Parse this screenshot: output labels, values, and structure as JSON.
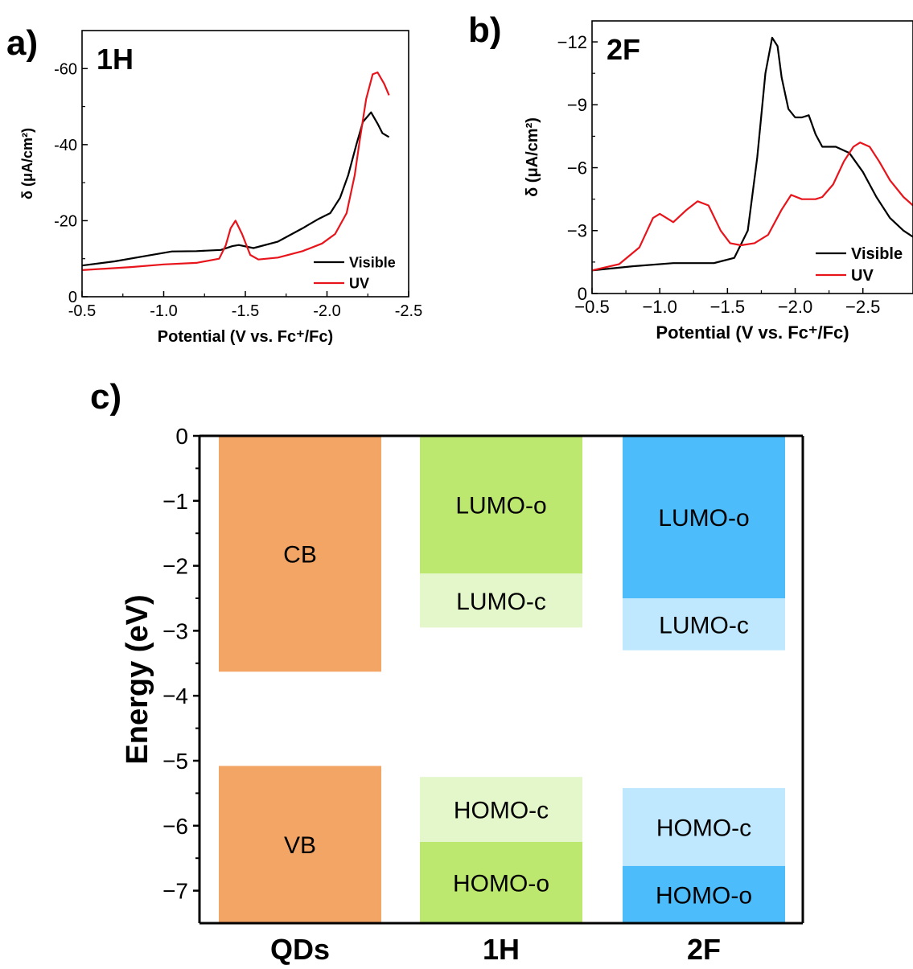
{
  "panels": {
    "a": {
      "letter": "a)"
    },
    "b": {
      "letter": "b)"
    },
    "c": {
      "letter": "c)"
    }
  },
  "chart_data": [
    {
      "panel": "a)",
      "type": "line",
      "title": "1H",
      "xlabel": "Potential (V vs. Fc⁺/Fc)",
      "ylabel": "δ (μA/cm²)",
      "xlim": [
        -0.5,
        -2.5
      ],
      "ylim": [
        0,
        -70
      ],
      "xticks": [
        -0.5,
        -1.0,
        -1.5,
        -2.0,
        -2.5
      ],
      "xtick_labels": [
        "-0.5",
        "-1.0",
        "-1.5",
        "-2.0",
        "-2.5"
      ],
      "yticks": [
        0,
        -20,
        -40,
        -60
      ],
      "ytick_labels": [
        "0",
        "-20",
        "-40",
        "-60"
      ],
      "legend_position": "bottom-right",
      "series": [
        {
          "name": "Visible",
          "color": "#000000",
          "x": [
            -0.5,
            -0.7,
            -0.9,
            -1.05,
            -1.2,
            -1.35,
            -1.42,
            -1.46,
            -1.55,
            -1.7,
            -1.85,
            -1.95,
            -2.02,
            -2.08,
            -2.13,
            -2.18,
            -2.22,
            -2.27,
            -2.31,
            -2.34,
            -2.38
          ],
          "y": [
            -8.2,
            -9.3,
            -10.8,
            -11.9,
            -12.0,
            -12.3,
            -13.3,
            -13.6,
            -12.8,
            -14.5,
            -18.0,
            -20.5,
            -22.0,
            -26.0,
            -32.0,
            -40.0,
            -46.0,
            -48.5,
            -45.5,
            -43.0,
            -42.0
          ]
        },
        {
          "name": "UV",
          "color": "#e8141b",
          "x": [
            -0.5,
            -0.8,
            -1.0,
            -1.2,
            -1.34,
            -1.38,
            -1.41,
            -1.44,
            -1.48,
            -1.53,
            -1.58,
            -1.7,
            -1.85,
            -1.97,
            -2.05,
            -2.12,
            -2.17,
            -2.2,
            -2.24,
            -2.28,
            -2.31,
            -2.35,
            -2.38
          ],
          "y": [
            -7.0,
            -7.8,
            -8.5,
            -8.9,
            -10.0,
            -13.5,
            -18.0,
            -20.0,
            -16.5,
            -11.0,
            -9.8,
            -10.3,
            -12.0,
            -14.0,
            -16.5,
            -22.0,
            -32.0,
            -41.0,
            -52.0,
            -58.5,
            -59.0,
            -56.0,
            -53.0
          ]
        }
      ]
    },
    {
      "panel": "b)",
      "type": "line",
      "title": "2F",
      "xlabel": "Potential (V vs. Fc⁺/Fc)",
      "ylabel": "δ (μA/cm²)",
      "xlim": [
        -0.5,
        -2.87
      ],
      "ylim": [
        0,
        -13
      ],
      "xticks": [
        -0.5,
        -1.0,
        -1.5,
        -2.0,
        -2.5
      ],
      "xtick_labels": [
        "−0.5",
        "−1.0",
        "−1.5",
        "−2.0",
        "−2.5"
      ],
      "yticks": [
        0,
        -3,
        -6,
        -9,
        -12
      ],
      "ytick_labels": [
        "0",
        "−3",
        "−6",
        "−9",
        "−12"
      ],
      "legend_position": "bottom-right",
      "series": [
        {
          "name": "Visible",
          "color": "#000000",
          "x": [
            -0.5,
            -0.8,
            -1.1,
            -1.4,
            -1.55,
            -1.65,
            -1.72,
            -1.78,
            -1.83,
            -1.87,
            -1.9,
            -1.95,
            -2.0,
            -2.05,
            -2.1,
            -2.15,
            -2.2,
            -2.3,
            -2.4,
            -2.5,
            -2.6,
            -2.7,
            -2.8,
            -2.87
          ],
          "y": [
            -1.1,
            -1.3,
            -1.45,
            -1.45,
            -1.7,
            -3.0,
            -6.5,
            -10.5,
            -12.2,
            -11.8,
            -10.3,
            -8.8,
            -8.4,
            -8.4,
            -8.5,
            -7.6,
            -7.0,
            -7.0,
            -6.7,
            -5.8,
            -4.6,
            -3.6,
            -3.0,
            -2.7
          ]
        },
        {
          "name": "UV",
          "color": "#e8141b",
          "x": [
            -0.5,
            -0.7,
            -0.85,
            -0.95,
            -1.0,
            -1.05,
            -1.1,
            -1.2,
            -1.28,
            -1.36,
            -1.45,
            -1.52,
            -1.6,
            -1.7,
            -1.8,
            -1.9,
            -1.97,
            -2.05,
            -2.15,
            -2.2,
            -2.28,
            -2.36,
            -2.43,
            -2.48,
            -2.55,
            -2.62,
            -2.7,
            -2.8,
            -2.87
          ],
          "y": [
            -1.1,
            -1.4,
            -2.2,
            -3.6,
            -3.8,
            -3.6,
            -3.4,
            -4.0,
            -4.4,
            -4.2,
            -3.0,
            -2.4,
            -2.3,
            -2.4,
            -2.8,
            -4.0,
            -4.7,
            -4.5,
            -4.5,
            -4.6,
            -5.2,
            -6.3,
            -7.0,
            -7.2,
            -7.0,
            -6.3,
            -5.4,
            -4.6,
            -4.2
          ]
        }
      ]
    },
    {
      "panel": "c)",
      "type": "bar",
      "ylabel": "Energy (eV)",
      "ylim": [
        0,
        -7.5
      ],
      "yticks": [
        0,
        -1,
        -2,
        -3,
        -4,
        -5,
        -6,
        -7
      ],
      "ytick_labels": [
        "0",
        "−1",
        "−2",
        "−3",
        "−4",
        "−5",
        "−6",
        "−7"
      ],
      "categories": [
        "QDs",
        "1H",
        "2F"
      ],
      "bars": [
        {
          "category": "QDs",
          "label": "CB",
          "from": 0,
          "to": -3.63,
          "color": "#f3a566"
        },
        {
          "category": "QDs",
          "label": "VB",
          "from": -5.08,
          "to": -7.5,
          "color": "#f3a566"
        },
        {
          "category": "1H",
          "label": "LUMO-o",
          "from": 0,
          "to": -2.12,
          "color": "#bde86f"
        },
        {
          "category": "1H",
          "label": "LUMO-c",
          "from": -2.12,
          "to": -2.95,
          "color": "#e3f7ca"
        },
        {
          "category": "1H",
          "label": "HOMO-c",
          "from": -5.25,
          "to": -6.25,
          "color": "#e3f7ca"
        },
        {
          "category": "1H",
          "label": "HOMO-o",
          "from": -6.25,
          "to": -7.5,
          "color": "#bde86f"
        },
        {
          "category": "2F",
          "label": "LUMO-o",
          "from": 0,
          "to": -2.5,
          "color": "#4cbcfa"
        },
        {
          "category": "2F",
          "label": "LUMO-c",
          "from": -2.5,
          "to": -3.3,
          "color": "#bfe7fd"
        },
        {
          "category": "2F",
          "label": "HOMO-c",
          "from": -5.42,
          "to": -6.62,
          "color": "#bfe7fd"
        },
        {
          "category": "2F",
          "label": "HOMO-o",
          "from": -6.62,
          "to": -7.5,
          "color": "#4cbcfa"
        }
      ]
    }
  ]
}
